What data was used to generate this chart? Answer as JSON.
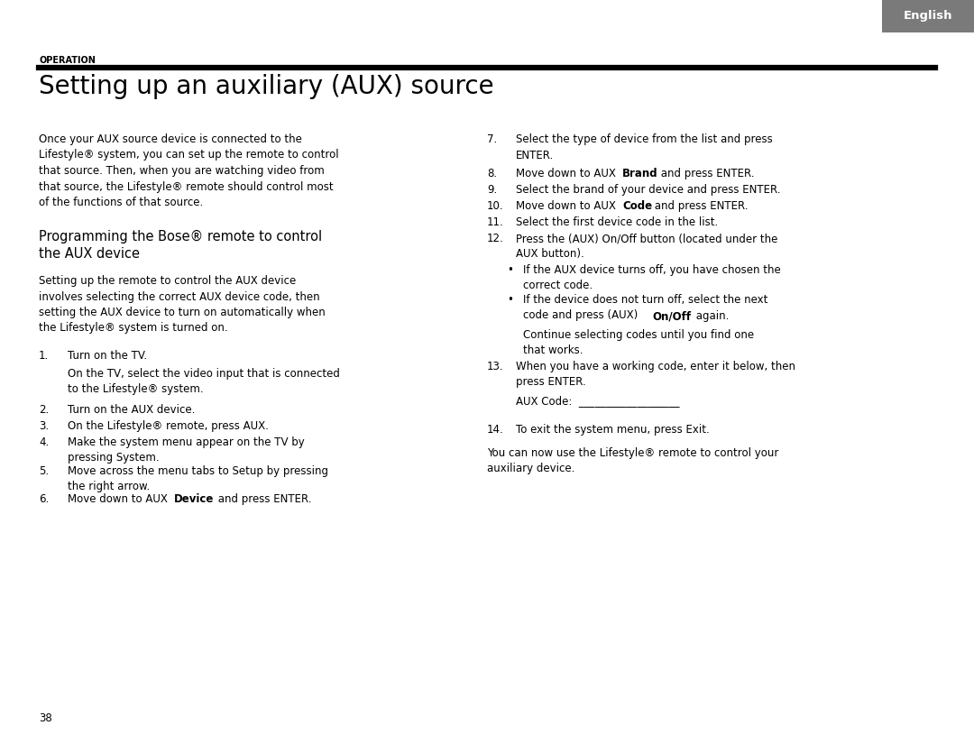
{
  "bg_color": "#ffffff",
  "tab_color": "#7a7a7a",
  "tab_text": "English",
  "tab_text_color": "#ffffff",
  "section_label": "OPERATION",
  "title": "Setting up an auxiliary (AUX) source",
  "page_number": "38"
}
